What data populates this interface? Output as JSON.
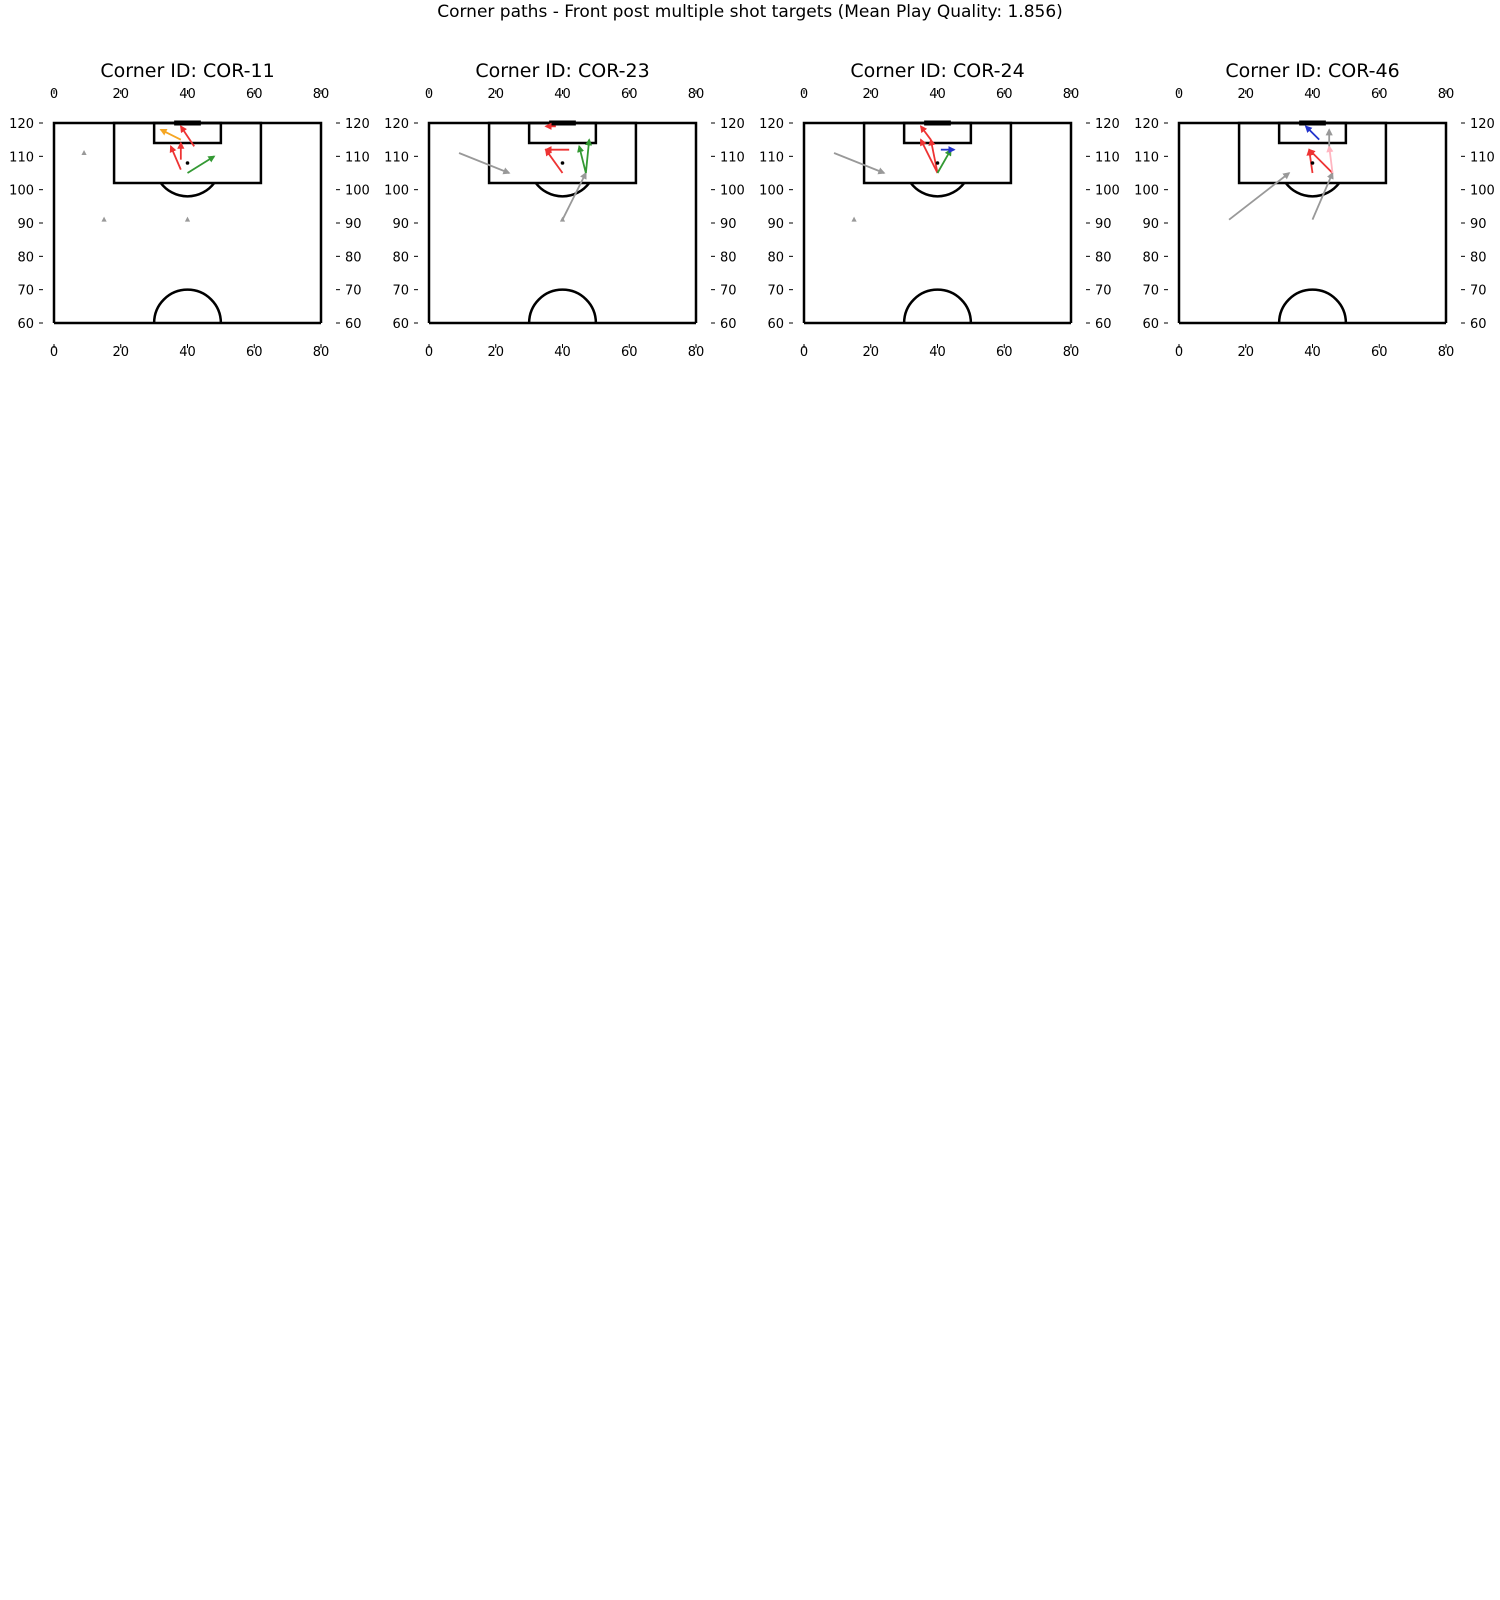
{
  "title": "Corner paths - Front post multiple shot targets (Mean Play Quality: 1.856)",
  "colors": {
    "line": "#000000",
    "gray": "#999999",
    "red": "#ee3333",
    "green": "#339933",
    "orange": "#f5a623",
    "blue": "#2233cc",
    "pink": "#ffb6c1",
    "dot": "#000000"
  },
  "chart_data": [
    {
      "type": "scatter",
      "title": "Corner ID: COR-11",
      "xlim": [
        0,
        80
      ],
      "ylim": [
        60,
        120
      ],
      "xticks": [
        0,
        20,
        40,
        60,
        80
      ],
      "yticks": [
        60,
        70,
        80,
        90,
        100,
        110,
        120
      ],
      "markers": [
        {
          "x": 9,
          "y": 111,
          "shape": "triangle",
          "color": "gray"
        },
        {
          "x": 15,
          "y": 91,
          "shape": "triangle",
          "color": "gray"
        },
        {
          "x": 40,
          "y": 91,
          "shape": "triangle",
          "color": "gray"
        },
        {
          "x": 40,
          "y": 108,
          "shape": "dot",
          "color": "dot"
        }
      ],
      "arrows": [
        {
          "x1": 40,
          "y1": 105,
          "x2": 48,
          "y2": 110,
          "color": "green"
        },
        {
          "x1": 38,
          "y1": 106,
          "x2": 35,
          "y2": 113,
          "color": "red"
        },
        {
          "x1": 38,
          "y1": 109,
          "x2": 38,
          "y2": 114,
          "color": "red"
        },
        {
          "x1": 42,
          "y1": 113,
          "x2": 38,
          "y2": 119,
          "color": "red"
        },
        {
          "x1": 38,
          "y1": 115,
          "x2": 32,
          "y2": 118,
          "color": "orange"
        }
      ]
    },
    {
      "type": "scatter",
      "title": "Corner ID: COR-23",
      "xlim": [
        0,
        80
      ],
      "ylim": [
        60,
        120
      ],
      "xticks": [
        0,
        20,
        40,
        60,
        80
      ],
      "yticks": [
        60,
        70,
        80,
        90,
        100,
        110,
        120
      ],
      "markers": [
        {
          "x": 40,
          "y": 108,
          "shape": "dot",
          "color": "dot"
        },
        {
          "x": 40,
          "y": 91,
          "shape": "triangle",
          "color": "gray"
        }
      ],
      "arrows": [
        {
          "x1": 9,
          "y1": 111,
          "x2": 24,
          "y2": 105,
          "color": "gray"
        },
        {
          "x1": 40,
          "y1": 91,
          "x2": 47,
          "y2": 105,
          "color": "gray"
        },
        {
          "x1": 40,
          "y1": 105,
          "x2": 35,
          "y2": 112,
          "color": "red"
        },
        {
          "x1": 42,
          "y1": 112,
          "x2": 35,
          "y2": 112,
          "color": "red"
        },
        {
          "x1": 38,
          "y1": 119,
          "x2": 35,
          "y2": 119,
          "color": "red"
        },
        {
          "x1": 47,
          "y1": 105,
          "x2": 45,
          "y2": 113,
          "color": "green"
        },
        {
          "x1": 47,
          "y1": 105,
          "x2": 48,
          "y2": 115,
          "color": "green"
        }
      ]
    },
    {
      "type": "scatter",
      "title": "Corner ID: COR-24",
      "xlim": [
        0,
        80
      ],
      "ylim": [
        60,
        120
      ],
      "xticks": [
        0,
        20,
        40,
        60,
        80
      ],
      "yticks": [
        60,
        70,
        80,
        90,
        100,
        110,
        120
      ],
      "markers": [
        {
          "x": 15,
          "y": 91,
          "shape": "triangle",
          "color": "gray"
        },
        {
          "x": 40,
          "y": 108,
          "shape": "dot",
          "color": "dot"
        }
      ],
      "arrows": [
        {
          "x1": 9,
          "y1": 111,
          "x2": 24,
          "y2": 105,
          "color": "gray"
        },
        {
          "x1": 40,
          "y1": 105,
          "x2": 35,
          "y2": 115,
          "color": "red"
        },
        {
          "x1": 40,
          "y1": 105,
          "x2": 38,
          "y2": 115,
          "color": "red"
        },
        {
          "x1": 38,
          "y1": 115,
          "x2": 35,
          "y2": 119,
          "color": "red"
        },
        {
          "x1": 40,
          "y1": 105,
          "x2": 44,
          "y2": 112,
          "color": "green"
        },
        {
          "x1": 41,
          "y1": 112,
          "x2": 45,
          "y2": 112,
          "color": "blue"
        }
      ]
    },
    {
      "type": "scatter",
      "title": "Corner ID: COR-46",
      "xlim": [
        0,
        80
      ],
      "ylim": [
        60,
        120
      ],
      "xticks": [
        0,
        20,
        40,
        60,
        80
      ],
      "yticks": [
        60,
        70,
        80,
        90,
        100,
        110,
        120
      ],
      "markers": [
        {
          "x": 40,
          "y": 108,
          "shape": "dot",
          "color": "dot"
        }
      ],
      "arrows": [
        {
          "x1": 15,
          "y1": 91,
          "x2": 33,
          "y2": 105,
          "color": "gray"
        },
        {
          "x1": 40,
          "y1": 91,
          "x2": 46,
          "y2": 105,
          "color": "gray"
        },
        {
          "x1": 46,
          "y1": 105,
          "x2": 39,
          "y2": 112,
          "color": "red"
        },
        {
          "x1": 40,
          "y1": 105,
          "x2": 39,
          "y2": 112,
          "color": "red"
        },
        {
          "x1": 46,
          "y1": 105,
          "x2": 45,
          "y2": 113,
          "color": "pink"
        },
        {
          "x1": 45,
          "y1": 113,
          "x2": 45,
          "y2": 118,
          "color": "gray"
        },
        {
          "x1": 42,
          "y1": 115,
          "x2": 38,
          "y2": 119,
          "color": "blue"
        }
      ]
    }
  ]
}
